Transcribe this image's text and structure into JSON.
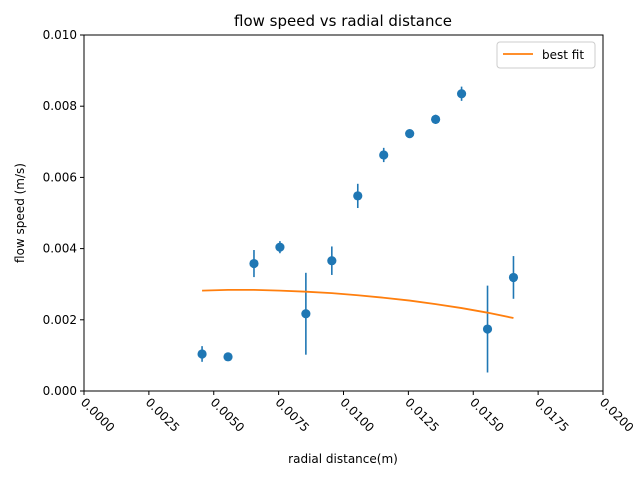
{
  "chart_data": {
    "type": "scatter",
    "title": "flow speed vs radial distance",
    "xlabel": "radial distance(m)",
    "ylabel": "flow speed (m/s)",
    "xlim": [
      0.0,
      0.02
    ],
    "ylim": [
      0.0,
      0.01
    ],
    "x_ticks": [
      "0.0000",
      "0.0025",
      "0.0050",
      "0.0075",
      "0.0100",
      "0.0125",
      "0.0150",
      "0.0175",
      "0.0200"
    ],
    "y_ticks": [
      "0.000",
      "0.002",
      "0.004",
      "0.006",
      "0.008",
      "0.010"
    ],
    "grid": false,
    "legend_position": "top-right",
    "series": [
      {
        "kind": "errorbar",
        "color": "#1f77b4",
        "points": [
          {
            "x": 0.00455,
            "y": 0.00104,
            "err": 0.00022
          },
          {
            "x": 0.00555,
            "y": 0.00096,
            "err": 5e-05
          },
          {
            "x": 0.00655,
            "y": 0.00358,
            "err": 0.00038
          },
          {
            "x": 0.00755,
            "y": 0.00404,
            "err": 0.00017
          },
          {
            "x": 0.00855,
            "y": 0.00217,
            "err": 0.00115
          },
          {
            "x": 0.00955,
            "y": 0.00366,
            "err": 0.0004
          },
          {
            "x": 0.01055,
            "y": 0.00548,
            "err": 0.00034
          },
          {
            "x": 0.01155,
            "y": 0.00663,
            "err": 0.0002
          },
          {
            "x": 0.01255,
            "y": 0.00723,
            "err": 0.00011
          },
          {
            "x": 0.01355,
            "y": 0.00763,
            "err": 0.00013
          },
          {
            "x": 0.01455,
            "y": 0.00835,
            "err": 0.0002
          },
          {
            "x": 0.01555,
            "y": 0.00174,
            "err": 0.00122
          },
          {
            "x": 0.01655,
            "y": 0.00319,
            "err": 0.0006
          }
        ]
      },
      {
        "kind": "line",
        "name": "best fit",
        "color": "#ff7f0e",
        "x": [
          0.00455,
          0.00555,
          0.00655,
          0.00755,
          0.00855,
          0.00955,
          0.01055,
          0.01155,
          0.01255,
          0.01355,
          0.01455,
          0.01555,
          0.01655
        ],
        "y": [
          0.00282,
          0.00284,
          0.00284,
          0.00282,
          0.00279,
          0.00275,
          0.00269,
          0.00262,
          0.00254,
          0.00244,
          0.00233,
          0.0022,
          0.00205
        ]
      }
    ]
  }
}
